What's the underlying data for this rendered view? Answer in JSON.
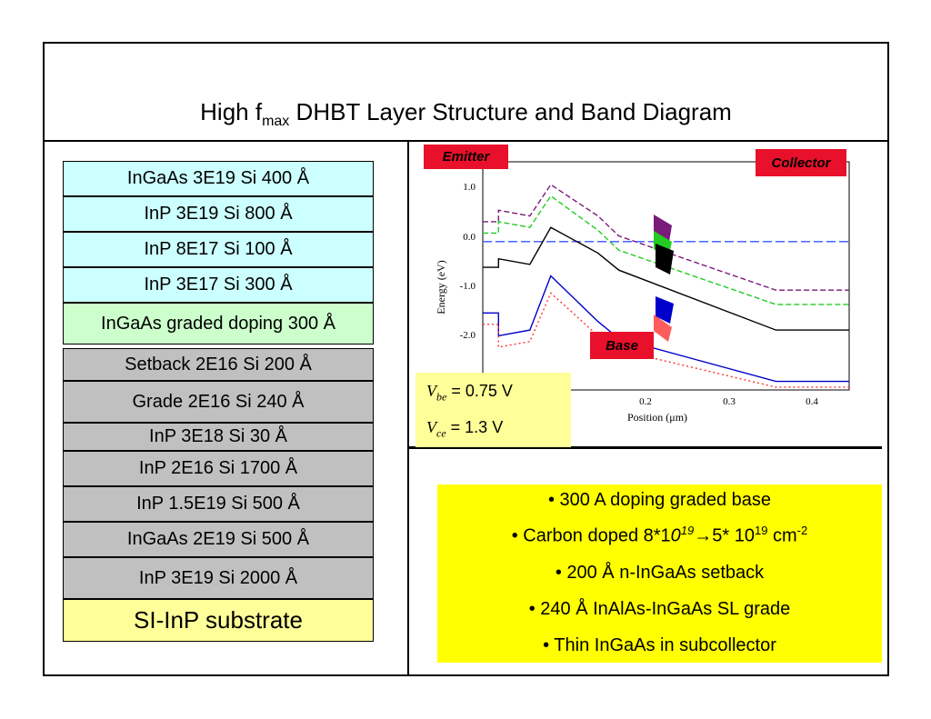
{
  "title": {
    "main": "High f",
    "sub": "max",
    "rest": " DHBT Layer Structure and Band Diagram"
  },
  "layers": [
    {
      "label": "InGaAs 3E19 Si 400 Å",
      "color": "#ccffff"
    },
    {
      "label": "InP 3E19 Si 800 Å",
      "color": "#ccffff"
    },
    {
      "label": "InP 8E17 Si 100 Å",
      "color": "#ccffff"
    },
    {
      "label": "InP 3E17 Si 300 Å",
      "color": "#ccffff"
    },
    {
      "label": "InGaAs graded doping 300 Å",
      "color": "#ccffcc"
    },
    {
      "label": "Setback 2E16 Si 200 Å",
      "color": "#c0c0c0"
    },
    {
      "label": "Grade 2E16 Si 240 Å",
      "color": "#c0c0c0"
    },
    {
      "label": "InP 3E18 Si 30 Å",
      "color": "#c0c0c0"
    },
    {
      "label": "InP 2E16 Si 1700 Å",
      "color": "#c0c0c0"
    },
    {
      "label": "InP 1.5E19 Si 500 Å",
      "color": "#c0c0c0"
    },
    {
      "label": "InGaAs 2E19 Si 500 Å",
      "color": "#c0c0c0"
    },
    {
      "label": "InP 3E19 Si 2000 Å",
      "color": "#c0c0c0"
    },
    {
      "label": "SI-InP substrate",
      "color": "#ffff99"
    }
  ],
  "band_diagram": {
    "emitter_label": "Emitter",
    "collector_label": "Collector",
    "base_label": "Base",
    "ylabel": "Energy (eV)",
    "xlabel": "Position (μm)",
    "y_ticks": [
      "1.0",
      "0.0",
      "-1.0",
      "-2.0"
    ],
    "x_ticks": [
      "0.2",
      "0.3",
      "0.4"
    ],
    "vbe": {
      "sym": "V",
      "sub": "be",
      "value": " = 0.75 V"
    },
    "vce": {
      "sym": "V",
      "sub": "ce",
      "value": " = 1.3 V"
    }
  },
  "notes": [
    {
      "a": "• 300 A doping graded base"
    },
    {
      "a": "• Carbon doped 8*1",
      "b": "0",
      "c": "19",
      "d": "→5* 10",
      "e": "19",
      "f": " cm",
      "g": "-2"
    },
    {
      "a": "• 200 Å  n-InGaAs setback"
    },
    {
      "a": "• 240 Å InAlAs-InGaAs SL grade"
    },
    {
      "a": "• Thin InGaAs in subcollector"
    }
  ],
  "colors": {
    "notes_bg": "#ffff00",
    "tag_red": "#e8102a",
    "vbox_bg": "#ffff99"
  },
  "chart_data": {
    "type": "line",
    "xlabel": "Position (μm)",
    "ylabel": "Energy (eV)",
    "xlim": [
      0.1,
      0.45
    ],
    "ylim": [
      -2.6,
      1.4
    ],
    "series": [
      {
        "x": [
          0.1,
          0.115,
          0.115,
          0.145,
          0.165,
          0.21,
          0.23,
          0.38,
          0.38,
          0.45
        ],
        "y": [
          0.35,
          0.35,
          0.55,
          0.45,
          1.0,
          0.45,
          0.1,
          -0.85,
          -0.85,
          -0.85
        ]
      },
      {
        "x": [
          0.1,
          0.115,
          0.115,
          0.145,
          0.165,
          0.21,
          0.23,
          0.38,
          0.38,
          0.45
        ],
        "y": [
          0.15,
          0.15,
          0.35,
          0.25,
          0.8,
          0.2,
          -0.15,
          -1.1,
          -1.1,
          -1.1
        ]
      },
      {
        "x": [
          0.1,
          0.45
        ],
        "y": [
          0.0,
          0.0
        ]
      },
      {
        "x": [
          0.1,
          0.115,
          0.115,
          0.145,
          0.165,
          0.21,
          0.23,
          0.38,
          0.38,
          0.45
        ],
        "y": [
          -0.45,
          -0.45,
          -0.3,
          -0.4,
          0.25,
          -0.2,
          -0.5,
          -1.55,
          -1.55,
          -1.55
        ]
      },
      {
        "x": [
          0.1,
          0.115,
          0.115,
          0.145,
          0.165,
          0.21,
          0.23,
          0.38,
          0.38,
          0.45
        ],
        "y": [
          -1.25,
          -1.25,
          -1.65,
          -1.55,
          -0.6,
          -1.4,
          -1.7,
          -2.45,
          -2.45,
          -2.45
        ]
      },
      {
        "x": [
          0.1,
          0.115,
          0.115,
          0.145,
          0.165,
          0.21,
          0.23,
          0.38,
          0.38,
          0.45
        ],
        "y": [
          -1.45,
          -1.45,
          -1.85,
          -1.75,
          -0.9,
          -1.65,
          -1.9,
          -2.55,
          -2.55,
          -2.55
        ]
      }
    ]
  }
}
